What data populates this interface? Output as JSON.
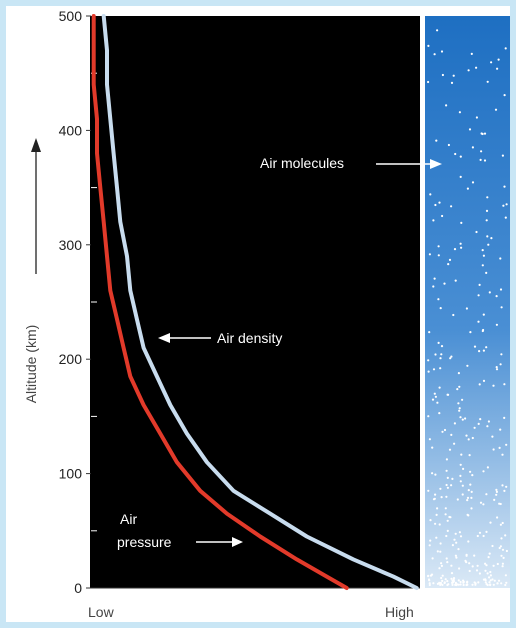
{
  "chart_data": {
    "type": "line",
    "ylabel": "Altitude (km)",
    "ylim": [
      0,
      500
    ],
    "yticks": [
      0,
      100,
      200,
      300,
      400,
      500
    ],
    "x_axis_labels": {
      "low": "Low",
      "high": "High"
    },
    "series": [
      {
        "name": "Air pressure",
        "label_lines": [
          "Air",
          "pressure"
        ],
        "color": "#e23a2a",
        "x": [
          0.78,
          0.72,
          0.63,
          0.52,
          0.42,
          0.34,
          0.27,
          0.22,
          0.17,
          0.13,
          0.11,
          0.09,
          0.07,
          0.06,
          0.05,
          0.04,
          0.03,
          0.03,
          0.02,
          0.02,
          0.02
        ],
        "y": [
          0,
          10,
          25,
          45,
          65,
          85,
          110,
          135,
          160,
          185,
          210,
          235,
          260,
          290,
          320,
          350,
          380,
          410,
          440,
          470,
          500
        ]
      },
      {
        "name": "Air density",
        "label_lines": [
          "Air density"
        ],
        "color": "#c8dcee",
        "x": [
          0.99,
          0.92,
          0.8,
          0.66,
          0.55,
          0.44,
          0.36,
          0.3,
          0.25,
          0.21,
          0.17,
          0.15,
          0.13,
          0.12,
          0.1,
          0.09,
          0.08,
          0.07,
          0.06,
          0.06,
          0.05
        ],
        "y": [
          0,
          10,
          25,
          45,
          65,
          85,
          110,
          135,
          160,
          185,
          210,
          235,
          260,
          290,
          320,
          350,
          380,
          410,
          440,
          470,
          500
        ]
      }
    ],
    "annotations": {
      "air_molecules": "Air molecules"
    },
    "grid": false,
    "colors": {
      "plot_background": "#000000",
      "axis": "#333333",
      "molecule_dot": "#ffffff",
      "sky_top": "#1e6fc2",
      "sky_bottom": "#dbe9f6"
    }
  }
}
